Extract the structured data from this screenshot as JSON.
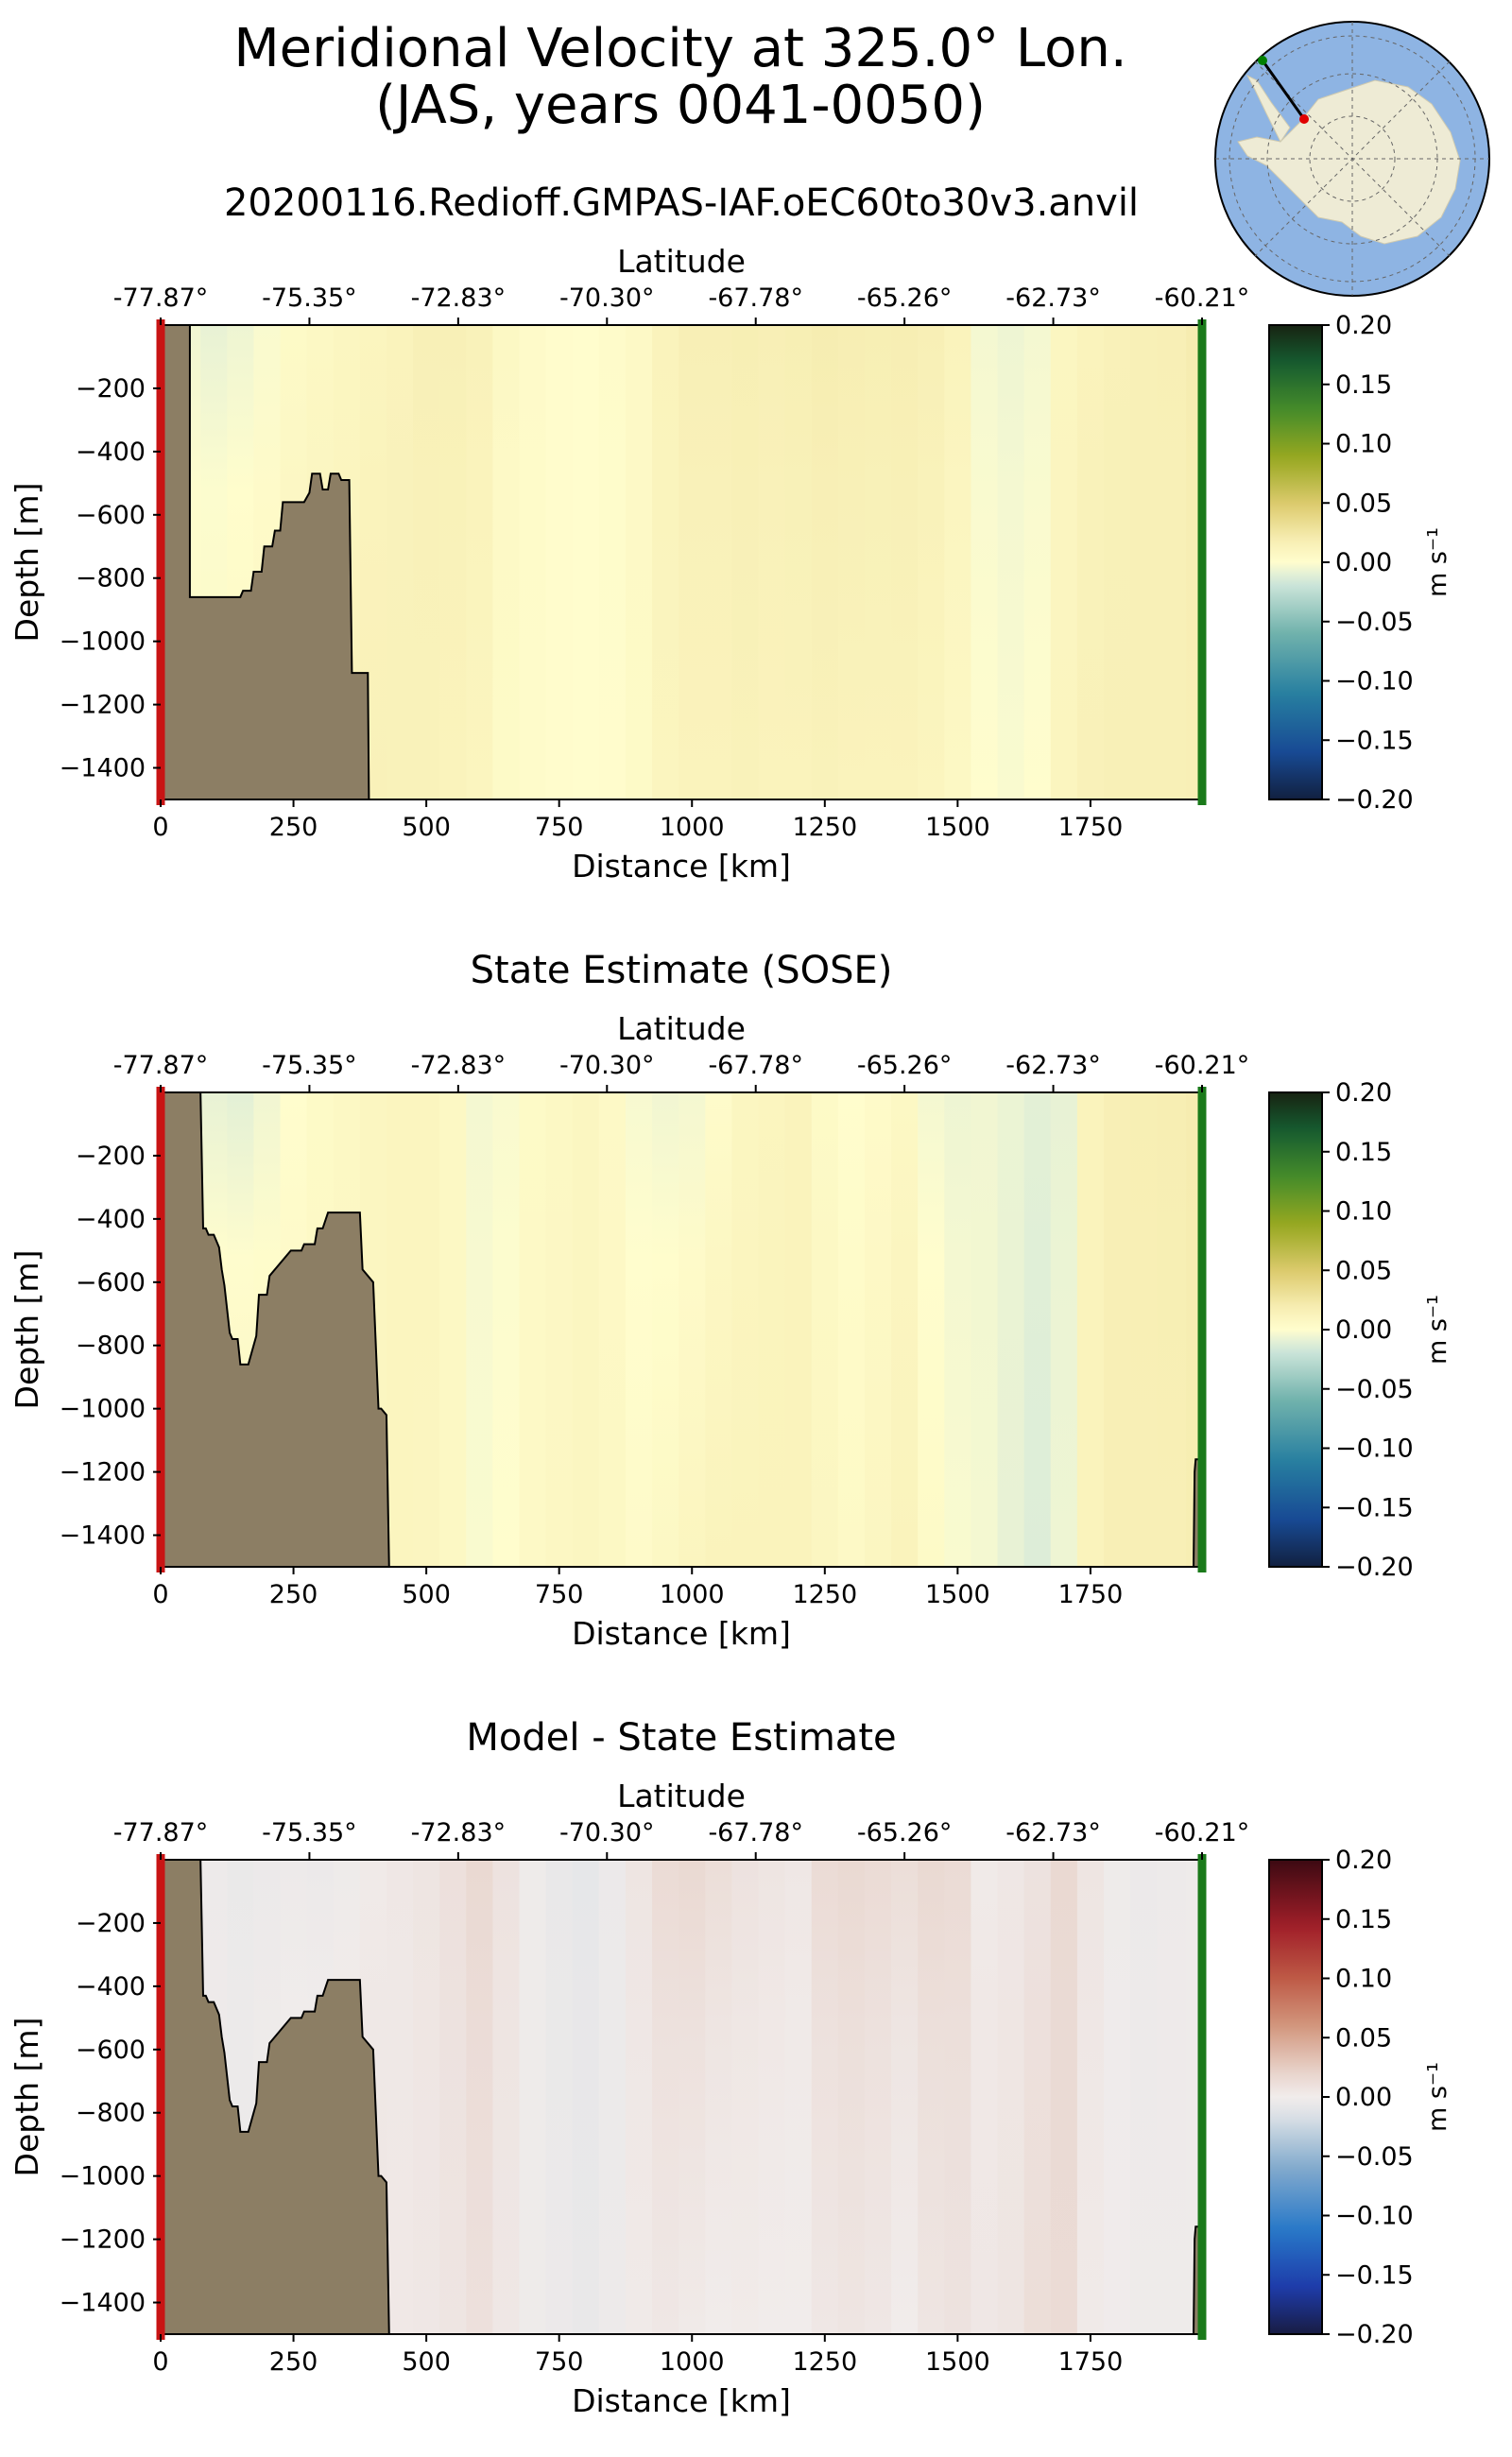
{
  "figure": {
    "title_line1": "Meridional Velocity at 325.0° Lon.",
    "title_line2": "(JAS, years 0041-0050)"
  },
  "inset_map": {
    "description": "south-polar-stereographic",
    "colors": {
      "ocean": "#8eb4e3",
      "land": "#eeebd5",
      "start_marker": "#e00000",
      "end_marker": "#008000",
      "line": "#000000"
    }
  },
  "colors": {
    "bathymetry": "#8c7e64",
    "left_edge": "#c81414",
    "right_edge": "#1a7a1a"
  },
  "chart_data": [
    {
      "type": "heatmap",
      "title": "20200116.Redioff.GMPAS-IAF.oEC60to30v3.anvil",
      "xlabel": "Distance [km]",
      "ylabel": "Depth [m]",
      "x2label": "Latitude",
      "xlim": [
        0,
        1960
      ],
      "ylim": [
        -1500,
        0
      ],
      "xticks": [
        0,
        250,
        500,
        750,
        1000,
        1250,
        1500,
        1750
      ],
      "yticks": [
        -200,
        -400,
        -600,
        -800,
        -1000,
        -1200,
        -1400
      ],
      "lat_ticks": [
        "-77.87°",
        "-75.35°",
        "-72.83°",
        "-70.30°",
        "-67.78°",
        "-65.26°",
        "-62.73°",
        "-60.21°"
      ],
      "lat_tick_positions_km": [
        0,
        280,
        560,
        840,
        1120,
        1400,
        1680,
        1960
      ],
      "colorbar": {
        "label": "m s⁻¹",
        "vmin": -0.2,
        "vmax": 0.2,
        "ticks": [
          "0.20",
          "0.15",
          "0.10",
          "0.05",
          "0.00",
          "−0.05",
          "−0.10",
          "−0.15",
          "−0.20"
        ],
        "cmap": "delta"
      },
      "field": {
        "x_km": [
          0,
          50,
          100,
          150,
          200,
          250,
          300,
          350,
          400,
          450,
          500,
          550,
          600,
          650,
          700,
          750,
          800,
          850,
          900,
          950,
          1000,
          1050,
          1100,
          1150,
          1200,
          1250,
          1300,
          1350,
          1400,
          1450,
          1500,
          1550,
          1600,
          1650,
          1700,
          1750,
          1800,
          1850,
          1900,
          1960
        ],
        "v_surface": [
          0.0,
          -0.005,
          -0.008,
          -0.006,
          -0.002,
          0.004,
          0.006,
          0.008,
          0.01,
          0.012,
          0.015,
          0.015,
          0.013,
          0.006,
          0.003,
          0.001,
          0.0,
          0.002,
          0.005,
          0.012,
          0.016,
          0.016,
          0.017,
          0.016,
          0.017,
          0.019,
          0.018,
          0.017,
          0.018,
          0.016,
          0.012,
          -0.004,
          -0.006,
          -0.004,
          0.008,
          0.012,
          0.014,
          0.015,
          0.016,
          0.02
        ],
        "v_deep": [
          0.0,
          0.004,
          0.006,
          0.007,
          0.008,
          0.009,
          0.01,
          0.012,
          0.014,
          0.013,
          0.013,
          0.012,
          0.01,
          0.004,
          0.002,
          0.001,
          0.0,
          0.001,
          0.004,
          0.01,
          0.012,
          0.012,
          0.013,
          0.012,
          0.012,
          0.013,
          0.012,
          0.012,
          0.012,
          0.01,
          0.006,
          0.0,
          -0.002,
          0.0,
          0.01,
          0.014,
          0.015,
          0.015,
          0.015,
          0.016
        ]
      },
      "bathymetry": {
        "x_km": [
          0,
          55,
          55,
          150,
          155,
          170,
          175,
          190,
          195,
          210,
          215,
          225,
          230,
          250,
          270,
          280,
          285,
          300,
          305,
          315,
          320,
          335,
          340,
          355,
          360,
          390,
          392,
          1960
        ],
        "depth_m": [
          0,
          0,
          -860,
          -860,
          -840,
          -840,
          -780,
          -780,
          -700,
          -700,
          -650,
          -650,
          -560,
          -560,
          -560,
          -530,
          -470,
          -470,
          -520,
          -520,
          -470,
          -470,
          -490,
          -490,
          -1100,
          -1100,
          -1500,
          -1500
        ]
      }
    },
    {
      "type": "heatmap",
      "title": "State Estimate (SOSE)",
      "xlabel": "Distance [km]",
      "ylabel": "Depth [m]",
      "x2label": "Latitude",
      "xlim": [
        0,
        1960
      ],
      "ylim": [
        -1500,
        0
      ],
      "xticks": [
        0,
        250,
        500,
        750,
        1000,
        1250,
        1500,
        1750
      ],
      "yticks": [
        -200,
        -400,
        -600,
        -800,
        -1000,
        -1200,
        -1400
      ],
      "lat_ticks": [
        "-77.87°",
        "-75.35°",
        "-72.83°",
        "-70.30°",
        "-67.78°",
        "-65.26°",
        "-62.73°",
        "-60.21°"
      ],
      "lat_tick_positions_km": [
        0,
        280,
        560,
        840,
        1120,
        1400,
        1680,
        1960
      ],
      "colorbar": {
        "label": "m s⁻¹",
        "vmin": -0.2,
        "vmax": 0.2,
        "ticks": [
          "0.20",
          "0.15",
          "0.10",
          "0.05",
          "0.00",
          "−0.05",
          "−0.10",
          "−0.15",
          "−0.20"
        ],
        "cmap": "delta"
      },
      "field": {
        "x_km": [
          0,
          50,
          100,
          150,
          200,
          250,
          300,
          350,
          400,
          450,
          500,
          550,
          600,
          650,
          700,
          750,
          800,
          850,
          900,
          950,
          1000,
          1050,
          1100,
          1150,
          1200,
          1250,
          1300,
          1350,
          1400,
          1450,
          1500,
          1550,
          1600,
          1650,
          1700,
          1750,
          1800,
          1850,
          1900,
          1960
        ],
        "v_surface": [
          0.0,
          -0.004,
          -0.008,
          -0.01,
          -0.005,
          0.0,
          0.004,
          0.006,
          0.008,
          0.01,
          0.01,
          0.006,
          -0.004,
          -0.002,
          0.004,
          0.006,
          0.008,
          0.005,
          -0.003,
          -0.005,
          -0.004,
          0.002,
          0.008,
          0.01,
          0.012,
          0.004,
          0.0,
          0.003,
          0.006,
          -0.004,
          -0.006,
          -0.005,
          -0.007,
          -0.01,
          -0.008,
          0.012,
          0.016,
          0.017,
          0.018,
          0.02
        ],
        "v_deep": [
          0.0,
          0.005,
          0.008,
          0.009,
          0.008,
          0.006,
          0.006,
          0.007,
          0.008,
          0.01,
          0.009,
          0.006,
          -0.002,
          0.0,
          0.005,
          0.007,
          0.008,
          0.006,
          0.003,
          0.006,
          0.01,
          0.012,
          0.012,
          0.012,
          0.012,
          0.008,
          0.005,
          0.008,
          0.012,
          0.004,
          -0.002,
          -0.004,
          -0.008,
          -0.012,
          -0.006,
          0.012,
          0.016,
          0.016,
          0.016,
          0.018
        ]
      },
      "bathymetry": {
        "x_km": [
          0,
          75,
          80,
          85,
          90,
          100,
          110,
          115,
          120,
          130,
          135,
          145,
          150,
          165,
          180,
          185,
          200,
          205,
          245,
          255,
          265,
          270,
          290,
          295,
          305,
          315,
          325,
          375,
          380,
          400,
          410,
          415,
          425,
          430,
          1944,
          1946,
          1948,
          1955,
          1960
        ],
        "depth_m": [
          0,
          0,
          -430,
          -430,
          -450,
          -450,
          -490,
          -560,
          -610,
          -760,
          -780,
          -780,
          -860,
          -860,
          -770,
          -640,
          -640,
          -580,
          -500,
          -500,
          -500,
          -480,
          -480,
          -430,
          -430,
          -380,
          -380,
          -380,
          -560,
          -600,
          -1000,
          -1000,
          -1020,
          -1500,
          -1500,
          -1200,
          -1160,
          -1160,
          -1160
        ]
      }
    },
    {
      "type": "heatmap",
      "title": "Model - State Estimate",
      "xlabel": "Distance [km]",
      "ylabel": "Depth [m]",
      "x2label": "Latitude",
      "xlim": [
        0,
        1960
      ],
      "ylim": [
        -1500,
        0
      ],
      "xticks": [
        0,
        250,
        500,
        750,
        1000,
        1250,
        1500,
        1750
      ],
      "yticks": [
        -200,
        -400,
        -600,
        -800,
        -1000,
        -1200,
        -1400
      ],
      "lat_ticks": [
        "-77.87°",
        "-75.35°",
        "-72.83°",
        "-70.30°",
        "-67.78°",
        "-65.26°",
        "-62.73°",
        "-60.21°"
      ],
      "lat_tick_positions_km": [
        0,
        280,
        560,
        840,
        1120,
        1400,
        1680,
        1960
      ],
      "colorbar": {
        "label": "m s⁻¹",
        "vmin": -0.2,
        "vmax": 0.2,
        "ticks": [
          "0.20",
          "0.15",
          "0.10",
          "0.05",
          "0.00",
          "−0.05",
          "−0.10",
          "−0.15",
          "−0.20"
        ],
        "cmap": "balance"
      },
      "field": {
        "x_km": [
          0,
          50,
          100,
          150,
          200,
          250,
          300,
          350,
          400,
          450,
          500,
          550,
          600,
          650,
          700,
          750,
          800,
          850,
          900,
          950,
          1000,
          1050,
          1100,
          1150,
          1200,
          1250,
          1300,
          1350,
          1400,
          1450,
          1500,
          1550,
          1600,
          1650,
          1700,
          1750,
          1800,
          1850,
          1900,
          1960
        ],
        "v_surface": [
          0.0,
          -0.002,
          -0.003,
          -0.005,
          -0.004,
          -0.003,
          -0.004,
          -0.002,
          0.002,
          0.004,
          0.006,
          0.01,
          0.016,
          0.008,
          -0.002,
          -0.006,
          -0.008,
          -0.004,
          0.006,
          0.014,
          0.016,
          0.012,
          0.008,
          0.006,
          0.004,
          0.014,
          0.016,
          0.014,
          0.012,
          0.016,
          0.014,
          0.002,
          0.004,
          0.008,
          0.016,
          0.006,
          -0.002,
          -0.004,
          -0.003,
          -0.002
        ],
        "v_deep": [
          0.0,
          -0.001,
          -0.002,
          -0.002,
          0.0,
          0.002,
          0.003,
          0.004,
          0.005,
          0.003,
          0.004,
          0.006,
          0.01,
          0.004,
          -0.002,
          -0.004,
          -0.006,
          -0.003,
          0.002,
          0.004,
          0.002,
          0.0,
          0.001,
          0.0,
          0.0,
          0.004,
          0.006,
          0.004,
          0.0,
          0.006,
          0.008,
          0.004,
          0.006,
          0.012,
          0.014,
          0.002,
          -0.001,
          -0.002,
          -0.002,
          -0.002
        ]
      },
      "bathymetry": {
        "x_km": [
          0,
          75,
          80,
          85,
          90,
          100,
          110,
          115,
          120,
          130,
          135,
          145,
          150,
          165,
          180,
          185,
          200,
          205,
          245,
          255,
          265,
          270,
          290,
          295,
          305,
          315,
          325,
          375,
          380,
          400,
          410,
          415,
          425,
          430,
          1944,
          1946,
          1948,
          1955,
          1960
        ],
        "depth_m": [
          0,
          0,
          -430,
          -430,
          -450,
          -450,
          -490,
          -560,
          -610,
          -760,
          -780,
          -780,
          -860,
          -860,
          -770,
          -640,
          -640,
          -580,
          -500,
          -500,
          -500,
          -480,
          -480,
          -430,
          -430,
          -380,
          -380,
          -380,
          -560,
          -600,
          -1000,
          -1000,
          -1020,
          -1500,
          -1500,
          -1200,
          -1160,
          -1160,
          -1160
        ]
      }
    }
  ]
}
